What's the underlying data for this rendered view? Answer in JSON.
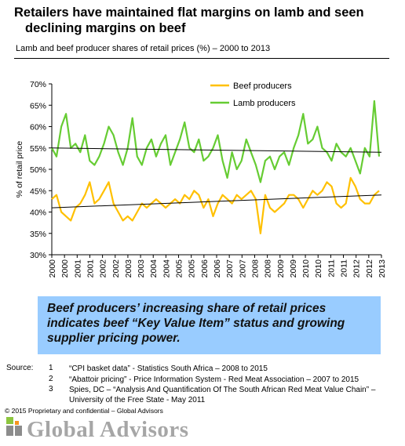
{
  "title_line1": "Retailers have maintained flat margins on lamb and seen",
  "title_line2": "declining margins on beef",
  "subtitle": "Lamb and beef producer shares of retail prices (%) – 2000 to 2013",
  "callout": "Beef producers’ increasing share of retail prices indicates beef “Key Value Item” status and growing supplier pricing power.",
  "source_label": "Source:",
  "sources": [
    {
      "num": "1",
      "text": "“CPI basket data” - Statistics South Africa – 2008 to 2015"
    },
    {
      "num": "2",
      "text": "“Abattoir pricing” - Price Information System - Red Meat Association – 2007 to 2015"
    },
    {
      "num": "3",
      "text": "Spies, DC – “Analysis And Quantification Of The South African Red Meat Value Chain” – University of the Free State -  May 2011"
    }
  ],
  "copyright": "© 2015 Proprietary and confidential – Global Advisors",
  "brand": "Global Advisors",
  "chart_data": {
    "type": "line",
    "ylabel": "% of retail price",
    "ylim": [
      30,
      70
    ],
    "yticks": [
      "30%",
      "35%",
      "40%",
      "45%",
      "50%",
      "55%",
      "60%",
      "65%",
      "70%"
    ],
    "xlim": [
      2000,
      2013.9
    ],
    "xticks": [
      "2000",
      "2000",
      "2001",
      "2001",
      "2002",
      "2002",
      "2003",
      "2003",
      "2004",
      "2004",
      "2005",
      "2005",
      "2006",
      "2006",
      "2007",
      "2007",
      "2008",
      "2008",
      "2009",
      "2009",
      "2010",
      "2010",
      "2011",
      "2011",
      "2012",
      "2012",
      "2013"
    ],
    "legend_position": "top-right",
    "series": [
      {
        "name": "Beef producers",
        "color": "#ffc000",
        "x": [
          2000.0,
          2000.2,
          2000.4,
          2000.6,
          2000.8,
          2001.0,
          2001.2,
          2001.4,
          2001.6,
          2001.8,
          2002.0,
          2002.2,
          2002.4,
          2002.6,
          2002.8,
          2003.0,
          2003.2,
          2003.4,
          2003.6,
          2003.8,
          2004.0,
          2004.2,
          2004.4,
          2004.6,
          2004.8,
          2005.0,
          2005.2,
          2005.4,
          2005.6,
          2005.8,
          2006.0,
          2006.2,
          2006.4,
          2006.6,
          2006.8,
          2007.0,
          2007.2,
          2007.4,
          2007.6,
          2007.8,
          2008.0,
          2008.2,
          2008.4,
          2008.6,
          2008.8,
          2009.0,
          2009.2,
          2009.4,
          2009.6,
          2009.8,
          2010.0,
          2010.2,
          2010.4,
          2010.6,
          2010.8,
          2011.0,
          2011.2,
          2011.4,
          2011.6,
          2011.8,
          2012.0,
          2012.2,
          2012.4,
          2012.6,
          2012.8,
          2013.0,
          2013.2,
          2013.4,
          2013.6,
          2013.8
        ],
        "values": [
          43,
          44,
          40,
          39,
          38,
          41,
          42,
          44,
          47,
          42,
          43,
          45,
          47,
          42,
          40,
          38,
          39,
          38,
          40,
          42,
          41,
          42,
          43,
          42,
          41,
          42,
          43,
          42,
          44,
          43,
          45,
          44,
          41,
          43,
          39,
          42,
          44,
          43,
          42,
          44,
          43,
          44,
          45,
          43,
          35,
          44,
          41,
          40,
          41,
          42,
          44,
          44,
          43,
          41,
          43,
          45,
          44,
          45,
          47,
          46,
          42,
          41,
          42,
          48,
          46,
          43,
          42,
          42,
          44,
          45
        ]
      },
      {
        "name": "Lamb producers",
        "color": "#66cc33",
        "x": [
          2000.0,
          2000.2,
          2000.4,
          2000.6,
          2000.8,
          2001.0,
          2001.2,
          2001.4,
          2001.6,
          2001.8,
          2002.0,
          2002.2,
          2002.4,
          2002.6,
          2002.8,
          2003.0,
          2003.2,
          2003.4,
          2003.6,
          2003.8,
          2004.0,
          2004.2,
          2004.4,
          2004.6,
          2004.8,
          2005.0,
          2005.2,
          2005.4,
          2005.6,
          2005.8,
          2006.0,
          2006.2,
          2006.4,
          2006.6,
          2006.8,
          2007.0,
          2007.2,
          2007.4,
          2007.6,
          2007.8,
          2008.0,
          2008.2,
          2008.4,
          2008.6,
          2008.8,
          2009.0,
          2009.2,
          2009.4,
          2009.6,
          2009.8,
          2010.0,
          2010.2,
          2010.4,
          2010.6,
          2010.8,
          2011.0,
          2011.2,
          2011.4,
          2011.6,
          2011.8,
          2012.0,
          2012.2,
          2012.4,
          2012.6,
          2012.8,
          2013.0,
          2013.2,
          2013.4,
          2013.6,
          2013.8
        ],
        "values": [
          55,
          53,
          60,
          63,
          55,
          56,
          54,
          58,
          52,
          51,
          53,
          56,
          60,
          58,
          54,
          51,
          55,
          62,
          53,
          51,
          55,
          57,
          53,
          56,
          58,
          51,
          54,
          57,
          61,
          55,
          54,
          57,
          52,
          53,
          55,
          58,
          52,
          48,
          54,
          50,
          52,
          57,
          54,
          51,
          47,
          52,
          53,
          50,
          53,
          54,
          51,
          55,
          58,
          63,
          56,
          57,
          60,
          55,
          54,
          52,
          56,
          54,
          53,
          55,
          52,
          49,
          55,
          53,
          66,
          53
        ]
      },
      {
        "name": "",
        "color": "#000000",
        "x": [
          2000.0,
          2013.9
        ],
        "values": [
          55.0,
          54.0
        ]
      },
      {
        "name": "",
        "color": "#000000",
        "x": [
          2000.0,
          2013.9
        ],
        "values": [
          41.0,
          44.0
        ]
      }
    ]
  }
}
